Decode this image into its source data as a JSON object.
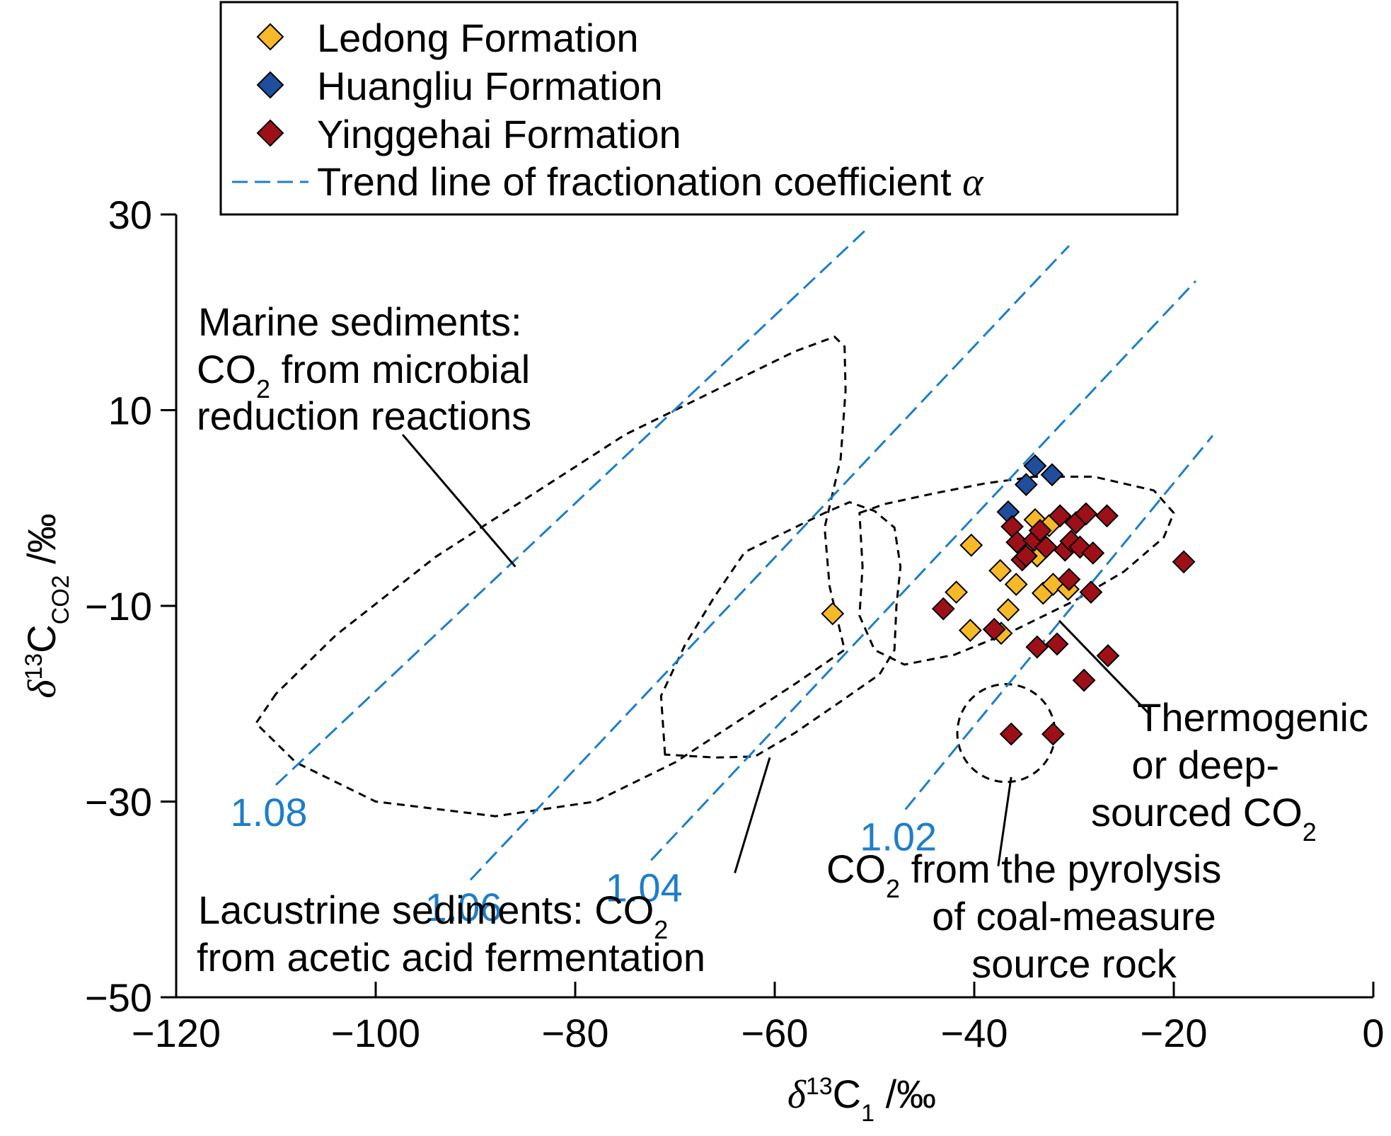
{
  "chart_data": {
    "type": "scatter",
    "xlabel": {
      "delta": "δ",
      "sup": "13",
      "main": "C",
      "sub": "1",
      "unit": " /‰"
    },
    "ylabel": {
      "delta": "δ",
      "sup": "13",
      "main": "C",
      "sub": "CO2",
      "unit": " /‰"
    },
    "xlim": [
      -120,
      0
    ],
    "ylim": [
      -50,
      30
    ],
    "xticks": [
      -120,
      -100,
      -80,
      -60,
      -40,
      -20,
      0
    ],
    "yticks": [
      -50,
      -30,
      -10,
      10,
      30
    ],
    "xtick_labels": [
      "−120",
      "−100",
      "−80",
      "−60",
      "−40",
      "−20",
      "0"
    ],
    "ytick_labels": [
      "−50",
      "−30",
      "−10",
      "10",
      "30"
    ],
    "legend": {
      "placement": "top",
      "series_labels": [
        "Ledong Formation",
        "Huangliu Formation",
        "Yinggehai Formation"
      ],
      "trend_label": "Trend line of fractionation coefficient ",
      "trend_symbol": "α"
    },
    "colors": {
      "ledong": "#f7b928",
      "huangliu": "#1f4e9c",
      "yinggehai": "#9e1018",
      "trend": "#1e7ec8",
      "region": "#000000"
    },
    "series": [
      {
        "name": "Ledong Formation",
        "color": "#f7b928",
        "points": [
          [
            -54.2,
            -10.8
          ],
          [
            -40.3,
            -3.8
          ],
          [
            -41.8,
            -8.6
          ],
          [
            -40.4,
            -12.5
          ],
          [
            -37.3,
            -12.8
          ],
          [
            -37.4,
            -6.4
          ],
          [
            -35.8,
            -7.8
          ],
          [
            -36.6,
            -10.4
          ],
          [
            -33.9,
            -1.2
          ],
          [
            -32.5,
            -1.8
          ],
          [
            -33.7,
            -4.9
          ],
          [
            -33.1,
            -8.7
          ],
          [
            -32.1,
            -7.8
          ],
          [
            -30.6,
            -8.3
          ]
        ]
      },
      {
        "name": "Huangliu Formation",
        "color": "#1f4e9c",
        "points": [
          [
            -33.9,
            4.3
          ],
          [
            -34.8,
            2.4
          ],
          [
            -32.2,
            3.4
          ],
          [
            -36.6,
            -0.4
          ]
        ]
      },
      {
        "name": "Yinggehai Formation",
        "color": "#9e1018",
        "points": [
          [
            -43.1,
            -10.3
          ],
          [
            -38.0,
            -12.4
          ],
          [
            -36.2,
            -1.9
          ],
          [
            -35.7,
            -3.5
          ],
          [
            -35.2,
            -5.3
          ],
          [
            -34.8,
            -4.9
          ],
          [
            -34.0,
            -3.3
          ],
          [
            -33.4,
            -2.3
          ],
          [
            -32.8,
            -4.0
          ],
          [
            -31.4,
            -0.8
          ],
          [
            -30.9,
            -4.3
          ],
          [
            -30.3,
            -3.4
          ],
          [
            -29.8,
            -1.5
          ],
          [
            -29.4,
            -4.0
          ],
          [
            -28.8,
            -0.6
          ],
          [
            -28.1,
            -4.6
          ],
          [
            -28.3,
            -8.6
          ],
          [
            -26.7,
            -0.8
          ],
          [
            -30.5,
            -7.3
          ],
          [
            -19.0,
            -5.5
          ],
          [
            -33.7,
            -14.2
          ],
          [
            -31.7,
            -13.9
          ],
          [
            -29.0,
            -17.6
          ],
          [
            -26.6,
            -15.1
          ],
          [
            -36.3,
            -23.1
          ],
          [
            -32.1,
            -23.1
          ]
        ]
      }
    ],
    "trend_lines": [
      {
        "alpha_label": "1.08",
        "x": [
          -110,
          -51
        ],
        "y": [
          -28.3,
          28.3
        ]
      },
      {
        "alpha_label": "1.06",
        "x": [
          -90.5,
          -30.5
        ],
        "y": [
          -38,
          26.8
        ]
      },
      {
        "alpha_label": "1.04",
        "x": [
          -72.4,
          -17.8
        ],
        "y": [
          -36,
          23.2
        ]
      },
      {
        "alpha_label": "1.02",
        "x": [
          -46.9,
          -16.1
        ],
        "y": [
          -30.8,
          7.4
        ]
      }
    ],
    "annotations": {
      "marine": [
        "Marine sediments:",
        "CO",
        "2",
        " from microbial",
        "reduction reactions"
      ],
      "lacustrine": [
        "Lacustrine sediments: CO",
        "2",
        "from acetic acid fermentation"
      ],
      "thermogenic": [
        "Thermogenic",
        "or deep-",
        "sourced CO",
        "2"
      ],
      "pyrolysis": [
        "CO",
        "2",
        " from the pyrolysis",
        "of coal-measure",
        "source rock"
      ]
    },
    "regions": [
      {
        "name": "marine-sediments-region",
        "points": [
          [
            -110,
            -19
          ],
          [
            -112,
            -22
          ],
          [
            -108,
            -26
          ],
          [
            -100,
            -30
          ],
          [
            -88,
            -31.5
          ],
          [
            -78,
            -30
          ],
          [
            -70,
            -26
          ],
          [
            -64,
            -22
          ],
          [
            -58,
            -18
          ],
          [
            -53,
            -14.5
          ],
          [
            -54.5,
            -8
          ],
          [
            -55,
            -2
          ],
          [
            -53.4,
            5
          ],
          [
            -52.9,
            12
          ],
          [
            -53,
            16.5
          ],
          [
            -54,
            17.5
          ],
          [
            -58,
            16
          ],
          [
            -64,
            13
          ],
          [
            -68,
            11
          ],
          [
            -75,
            7.5
          ],
          [
            -94,
            -5
          ],
          [
            -104,
            -13
          ],
          [
            -110,
            -19
          ]
        ]
      },
      {
        "name": "lacustrine-sediments-region",
        "points": [
          [
            -71,
            -25.2
          ],
          [
            -71.4,
            -19.2
          ],
          [
            -69,
            -14
          ],
          [
            -66,
            -9
          ],
          [
            -63,
            -4.5
          ],
          [
            -59,
            -2.5
          ],
          [
            -55,
            -0.5
          ],
          [
            -52.5,
            0.6
          ],
          [
            -50,
            -0.3
          ],
          [
            -48,
            -2
          ],
          [
            -47.4,
            -6
          ],
          [
            -47.8,
            -10
          ],
          [
            -48,
            -14.5
          ],
          [
            -49.5,
            -17
          ],
          [
            -53,
            -19.5
          ],
          [
            -58,
            -23
          ],
          [
            -62,
            -25.4
          ],
          [
            -66,
            -25.5
          ],
          [
            -71,
            -25.2
          ]
        ]
      },
      {
        "name": "thermogenic-region",
        "points": [
          [
            -51.5,
            -0.5
          ],
          [
            -49,
            0.4
          ],
          [
            -44,
            1.5
          ],
          [
            -39,
            2.5
          ],
          [
            -34,
            3.2
          ],
          [
            -28,
            3.2
          ],
          [
            -22,
            1.8
          ],
          [
            -20,
            -0.5
          ],
          [
            -21,
            -3
          ],
          [
            -25,
            -6.5
          ],
          [
            -30,
            -9.5
          ],
          [
            -36,
            -12.5
          ],
          [
            -42,
            -15
          ],
          [
            -47,
            -16
          ],
          [
            -50,
            -14.5
          ],
          [
            -51.5,
            -11
          ],
          [
            -51.2,
            -6
          ],
          [
            -51.5,
            -0.5
          ]
        ]
      },
      {
        "name": "coal-pyrolysis-region",
        "cx": -36.8,
        "cy": -23,
        "rx": 4.9,
        "ry": 5
      }
    ]
  }
}
